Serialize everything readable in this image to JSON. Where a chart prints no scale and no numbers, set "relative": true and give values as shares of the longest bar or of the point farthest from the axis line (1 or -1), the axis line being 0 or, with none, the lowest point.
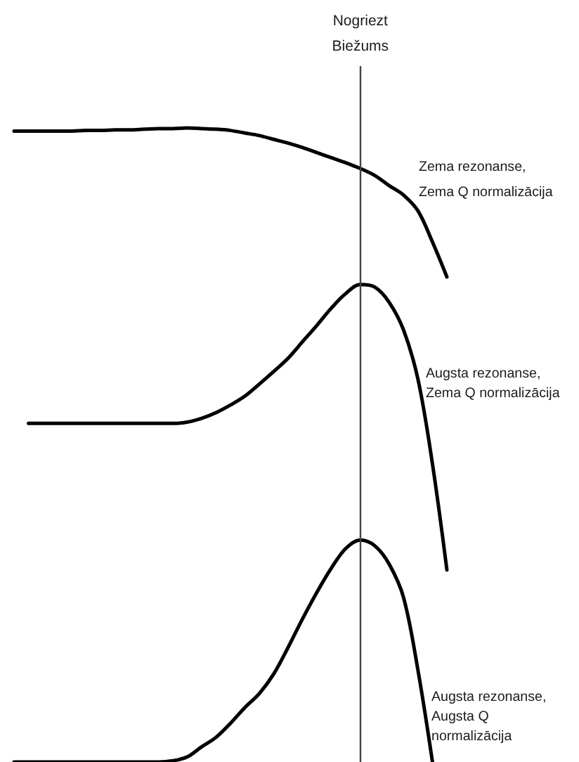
{
  "chart_data": {
    "type": "line",
    "relative": true,
    "tick_labels": false,
    "categories": [
      null,
      null,
      null,
      null,
      null,
      null,
      null,
      null,
      null,
      null,
      null,
      null,
      null,
      null,
      null,
      null,
      null,
      null,
      null,
      null,
      null,
      null,
      null,
      null,
      null,
      null,
      null,
      null,
      null,
      null,
      null
    ],
    "series": [
      {
        "name": "Zema rezonanse,\nZema Q normalizācija",
        "color": "#000000",
        "values": [
          0.995,
          0.995,
          0.995,
          0.995,
          0.995,
          0.996,
          0.996,
          0.997,
          0.997,
          0.998,
          0.999,
          0.999,
          1,
          0.999,
          0.998,
          0.996,
          0.992,
          0.988,
          0.982,
          0.976,
          0.969,
          0.961,
          0.953,
          0.945,
          0.936,
          0.925,
          0.909,
          0.894,
          0.869,
          0.82,
          0.765
        ]
      },
      {
        "name": "Augsta rezonanse,\nZema Q normalizācija",
        "color": "#000000",
        "values": [
          null,
          0.534,
          0.534,
          0.534,
          0.534,
          0.534,
          0.534,
          0.534,
          0.534,
          0.534,
          0.534,
          0.534,
          0.536,
          0.542,
          0.551,
          0.563,
          0.577,
          0.596,
          0.616,
          0.637,
          0.663,
          0.689,
          0.716,
          0.739,
          0.753,
          0.749,
          0.725,
          0.681,
          0.603,
          0.47,
          0.303
        ]
      },
      {
        "name": "Augsta rezonanse,\nAugsta Q normalizācija",
        "color": "#000000",
        "values": [
          0,
          0,
          0,
          0,
          0,
          0,
          0,
          0,
          0,
          0,
          0,
          0.002,
          0.008,
          0.024,
          0.039,
          0.061,
          0.086,
          0.108,
          0.139,
          0.181,
          0.226,
          0.268,
          0.306,
          0.337,
          0.35,
          0.341,
          0.312,
          0.259,
          0.144,
          0,
          null
        ]
      }
    ],
    "annotations": [
      "Nogriezt\nBiežums"
    ]
  }
}
